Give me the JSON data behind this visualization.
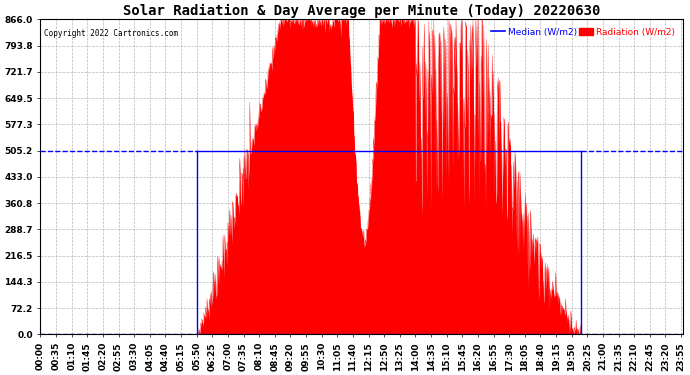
{
  "title": "Solar Radiation & Day Average per Minute (Today) 20220630",
  "copyright_text": "Copyright 2022 Cartronics.com",
  "legend_median_label": "Median (W/m2)",
  "legend_radiation_label": "Radiation (W/m2)",
  "y_max": 866.0,
  "y_min": 0.0,
  "y_ticks": [
    0.0,
    72.2,
    144.3,
    216.5,
    288.7,
    360.8,
    433.0,
    505.2,
    577.3,
    649.5,
    721.7,
    793.8,
    866.0
  ],
  "median_value": 505.2,
  "sunrise_minute": 350,
  "sunset_minute": 1210,
  "bg_color": "#ffffff",
  "fill_color": "#ff0000",
  "median_color": "#0000ff",
  "grid_color": "#888888",
  "title_fontsize": 10,
  "tick_fontsize": 6.5,
  "total_minutes": 1440,
  "tick_step_minutes": 35
}
